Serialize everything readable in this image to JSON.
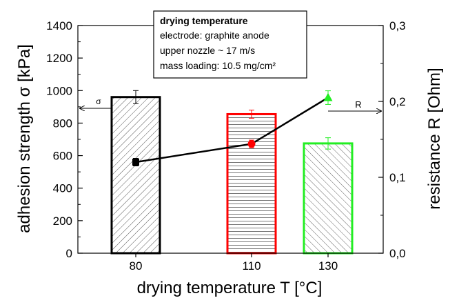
{
  "chart_data": {
    "type": "bar",
    "categories": [
      "80",
      "110",
      "130"
    ],
    "x": [
      80,
      110,
      130
    ],
    "xlabel": "drying temperature T [°C]",
    "ylabel_left": "adhesion strength σ  [kPa]",
    "ylabel_right": "resistance R [Ohm]",
    "ylim_left": [
      0,
      1400
    ],
    "ylim_right": [
      0.0,
      0.3
    ],
    "yticks_left": [
      "0",
      "200",
      "400",
      "600",
      "800",
      "1000",
      "1200",
      "1400"
    ],
    "yticks_right": [
      "0,0",
      "0,1",
      "0,2",
      "0,3"
    ],
    "bars": {
      "name": "σ",
      "values": [
        960,
        855,
        675
      ],
      "errors": [
        40,
        25,
        35
      ],
      "edge_colors": [
        "#000000",
        "#ff0000",
        "#22ee22"
      ],
      "hatches": [
        "diagonal",
        "horizontal",
        "diagonal-reverse"
      ]
    },
    "line": {
      "name": "R",
      "values": [
        0.12,
        0.144,
        0.205
      ],
      "errors": [
        0.005,
        0.005,
        0.009
      ],
      "colors": [
        "#000000",
        "#ff0000",
        "#22ee22"
      ],
      "markers": [
        "square",
        "circle",
        "triangle"
      ]
    },
    "arrow_left_label": "σ",
    "arrow_right_label": "R",
    "annotation": {
      "title": "drying temperature",
      "lines": [
        "electrode: graphite anode",
        "upper nozzle ~ 17 m/s",
        "mass loading: 10.5 mg/cm²"
      ]
    }
  }
}
